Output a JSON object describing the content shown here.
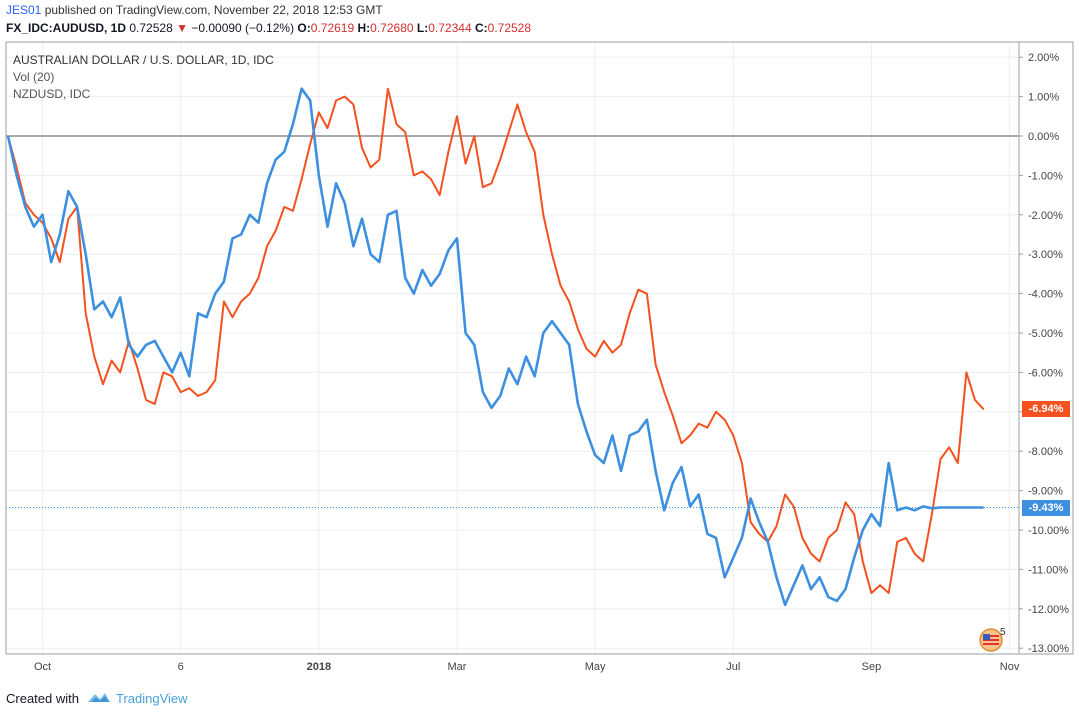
{
  "header": {
    "author": "JES01",
    "published_text": "published on TradingView.com, November 22, 2018 12:53 GMT",
    "symbol": "FX_IDC:AUDUSD, 1D",
    "price": "0.72528",
    "change": "−0.00090 (−0.12%)",
    "open_label": "O:",
    "open": "0.72619",
    "high_label": "H:",
    "high": "0.72680",
    "low_label": "L:",
    "low": "0.72344",
    "close_label": "C:",
    "close": "0.72528"
  },
  "legend": {
    "main": "AUSTRALIAN DOLLAR / U.S. DOLLAR, 1D, IDC",
    "vol": "Vol (20)",
    "compare": "NZDUSD, IDC"
  },
  "tags": {
    "audusd": "-6.94%",
    "nzdusd": "-9.43%"
  },
  "badge": {
    "count": "5"
  },
  "footer": {
    "created_with": "Created with",
    "brand": "TradingView"
  },
  "colors": {
    "audusd": "#f4511e",
    "nzdusd": "#3d8fe0",
    "grid": "#eceff2",
    "zero_line": "#555555",
    "axis_text": "#444444"
  },
  "chart_data": {
    "type": "line",
    "title": "AUSTRALIAN DOLLAR / U.S. DOLLAR, 1D, IDC",
    "ylabel": "%",
    "ylim": [
      -13,
      2.3
    ],
    "y_ticks": [
      "2.00%",
      "1.00%",
      "0.00%",
      "-1.00%",
      "-2.00%",
      "-3.00%",
      "-4.00%",
      "-5.00%",
      "-6.00%",
      "-7.00%",
      "-8.00%",
      "-9.00%",
      "-10.00%",
      "-11.00%",
      "-12.00%",
      "-13.00%"
    ],
    "y_tick_values": [
      2,
      1,
      0,
      -1,
      -2,
      -3,
      -4,
      -5,
      -6,
      -7,
      -8,
      -9,
      -10,
      -11,
      -12,
      -13
    ],
    "x_ticks": [
      {
        "label": "Oct",
        "t": 0.04
      },
      {
        "label": "6",
        "t": 0.2
      },
      {
        "label": "2018",
        "t": 0.36
      },
      {
        "label": "Mar",
        "t": 0.52
      },
      {
        "label": "May",
        "t": 0.68
      },
      {
        "label": "Jul",
        "t": 0.84
      },
      {
        "label": "Sep",
        "t": 1.0
      },
      {
        "label": "Nov",
        "t": 1.16
      }
    ],
    "x_range": [
      0,
      1.135
    ],
    "series": [
      {
        "name": "AUSTRALIAN DOLLAR / U.S. DOLLAR",
        "color": "#f4511e",
        "x": [
          0.0,
          0.01,
          0.02,
          0.03,
          0.04,
          0.05,
          0.06,
          0.07,
          0.08,
          0.09,
          0.1,
          0.11,
          0.12,
          0.13,
          0.14,
          0.15,
          0.16,
          0.17,
          0.18,
          0.19,
          0.2,
          0.21,
          0.22,
          0.23,
          0.24,
          0.25,
          0.26,
          0.27,
          0.28,
          0.29,
          0.3,
          0.31,
          0.32,
          0.33,
          0.34,
          0.35,
          0.36,
          0.37,
          0.38,
          0.39,
          0.4,
          0.41,
          0.42,
          0.43,
          0.44,
          0.45,
          0.46,
          0.47,
          0.48,
          0.49,
          0.5,
          0.51,
          0.52,
          0.53,
          0.54,
          0.55,
          0.56,
          0.57,
          0.58,
          0.59,
          0.6,
          0.61,
          0.62,
          0.63,
          0.64,
          0.65,
          0.66,
          0.67,
          0.68,
          0.69,
          0.7,
          0.71,
          0.72,
          0.73,
          0.74,
          0.75,
          0.76,
          0.77,
          0.78,
          0.79,
          0.8,
          0.81,
          0.82,
          0.83,
          0.84,
          0.85,
          0.86,
          0.87,
          0.88,
          0.89,
          0.9,
          0.91,
          0.92,
          0.93,
          0.94,
          0.95,
          0.96,
          0.97,
          0.98,
          0.99,
          1.0,
          1.01,
          1.02,
          1.03,
          1.04,
          1.05,
          1.06,
          1.07,
          1.08,
          1.09,
          1.1,
          1.11,
          1.12,
          1.13
        ],
        "values": [
          0.0,
          -0.8,
          -1.7,
          -2.0,
          -2.2,
          -2.6,
          -3.2,
          -2.1,
          -1.8,
          -4.5,
          -5.6,
          -6.3,
          -5.7,
          -6.0,
          -5.2,
          -5.9,
          -6.7,
          -6.8,
          -6.0,
          -6.1,
          -6.5,
          -6.4,
          -6.6,
          -6.5,
          -6.2,
          -4.2,
          -4.6,
          -4.2,
          -4.0,
          -3.6,
          -2.8,
          -2.4,
          -1.8,
          -1.9,
          -1.1,
          -0.2,
          0.6,
          0.2,
          0.9,
          1.0,
          0.8,
          -0.3,
          -0.8,
          -0.6,
          1.2,
          0.3,
          0.1,
          -1.0,
          -0.9,
          -1.1,
          -1.5,
          -0.4,
          0.5,
          -0.7,
          0.0,
          -1.3,
          -1.2,
          -0.6,
          0.1,
          0.8,
          0.1,
          -0.4,
          -2.0,
          -3.0,
          -3.8,
          -4.2,
          -4.9,
          -5.4,
          -5.6,
          -5.2,
          -5.5,
          -5.3,
          -4.5,
          -3.9,
          -4.0,
          -5.8,
          -6.5,
          -7.1,
          -7.8,
          -7.6,
          -7.3,
          -7.4,
          -7.0,
          -7.2,
          -7.6,
          -8.3,
          -9.8,
          -10.1,
          -10.3,
          -9.9,
          -9.1,
          -9.4,
          -10.2,
          -10.6,
          -10.8,
          -10.2,
          -10.0,
          -9.3,
          -9.6,
          -10.8,
          -11.6,
          -11.4,
          -11.6,
          -10.3,
          -10.2,
          -10.6,
          -10.8,
          -9.6,
          -8.2,
          -7.9,
          -8.3,
          -6.0,
          -6.7,
          -6.94
        ]
      },
      {
        "name": "NZDUSD",
        "color": "#3d8fe0",
        "x": [
          0.0,
          0.01,
          0.02,
          0.03,
          0.04,
          0.05,
          0.06,
          0.07,
          0.08,
          0.09,
          0.1,
          0.11,
          0.12,
          0.13,
          0.14,
          0.15,
          0.16,
          0.17,
          0.18,
          0.19,
          0.2,
          0.21,
          0.22,
          0.23,
          0.24,
          0.25,
          0.26,
          0.27,
          0.28,
          0.29,
          0.3,
          0.31,
          0.32,
          0.33,
          0.34,
          0.35,
          0.36,
          0.37,
          0.38,
          0.39,
          0.4,
          0.41,
          0.42,
          0.43,
          0.44,
          0.45,
          0.46,
          0.47,
          0.48,
          0.49,
          0.5,
          0.51,
          0.52,
          0.53,
          0.54,
          0.55,
          0.56,
          0.57,
          0.58,
          0.59,
          0.6,
          0.61,
          0.62,
          0.63,
          0.64,
          0.65,
          0.66,
          0.67,
          0.68,
          0.69,
          0.7,
          0.71,
          0.72,
          0.73,
          0.74,
          0.75,
          0.76,
          0.77,
          0.78,
          0.79,
          0.8,
          0.81,
          0.82,
          0.83,
          0.84,
          0.85,
          0.86,
          0.87,
          0.88,
          0.89,
          0.9,
          0.91,
          0.92,
          0.93,
          0.94,
          0.95,
          0.96,
          0.97,
          0.98,
          0.99,
          1.0,
          1.01,
          1.02,
          1.03,
          1.04,
          1.05,
          1.06,
          1.07,
          1.08,
          1.09,
          1.1,
          1.11,
          1.12,
          1.13
        ],
        "values": [
          0.0,
          -1.0,
          -1.8,
          -2.3,
          -2.0,
          -3.2,
          -2.5,
          -1.4,
          -1.8,
          -3.0,
          -4.4,
          -4.2,
          -4.6,
          -4.1,
          -5.3,
          -5.6,
          -5.3,
          -5.2,
          -5.6,
          -6.0,
          -5.5,
          -6.1,
          -4.5,
          -4.6,
          -4.0,
          -3.7,
          -2.6,
          -2.5,
          -2.0,
          -2.2,
          -1.2,
          -0.6,
          -0.4,
          0.3,
          1.2,
          0.9,
          -1.0,
          -2.3,
          -1.2,
          -1.7,
          -2.8,
          -2.1,
          -3.0,
          -3.2,
          -2.0,
          -1.9,
          -3.6,
          -4.0,
          -3.4,
          -3.8,
          -3.5,
          -2.9,
          -2.6,
          -5.0,
          -5.3,
          -6.5,
          -6.9,
          -6.6,
          -5.9,
          -6.3,
          -5.6,
          -6.1,
          -5.0,
          -4.7,
          -5.0,
          -5.3,
          -6.8,
          -7.5,
          -8.1,
          -8.3,
          -7.6,
          -8.5,
          -7.6,
          -7.5,
          -7.2,
          -8.5,
          -9.5,
          -8.8,
          -8.4,
          -9.4,
          -9.1,
          -10.1,
          -10.2,
          -11.2,
          -10.7,
          -10.2,
          -9.2,
          -9.8,
          -10.3,
          -11.2,
          -11.9,
          -11.4,
          -10.9,
          -11.5,
          -11.2,
          -11.7,
          -11.8,
          -11.5,
          -10.7,
          -10.0,
          -9.6,
          -9.9,
          -8.3,
          -9.5,
          -9.43,
          -9.5,
          -9.4,
          -9.45,
          -9.43,
          -9.43,
          -9.43,
          -9.43,
          -9.43,
          -9.43
        ]
      }
    ]
  }
}
